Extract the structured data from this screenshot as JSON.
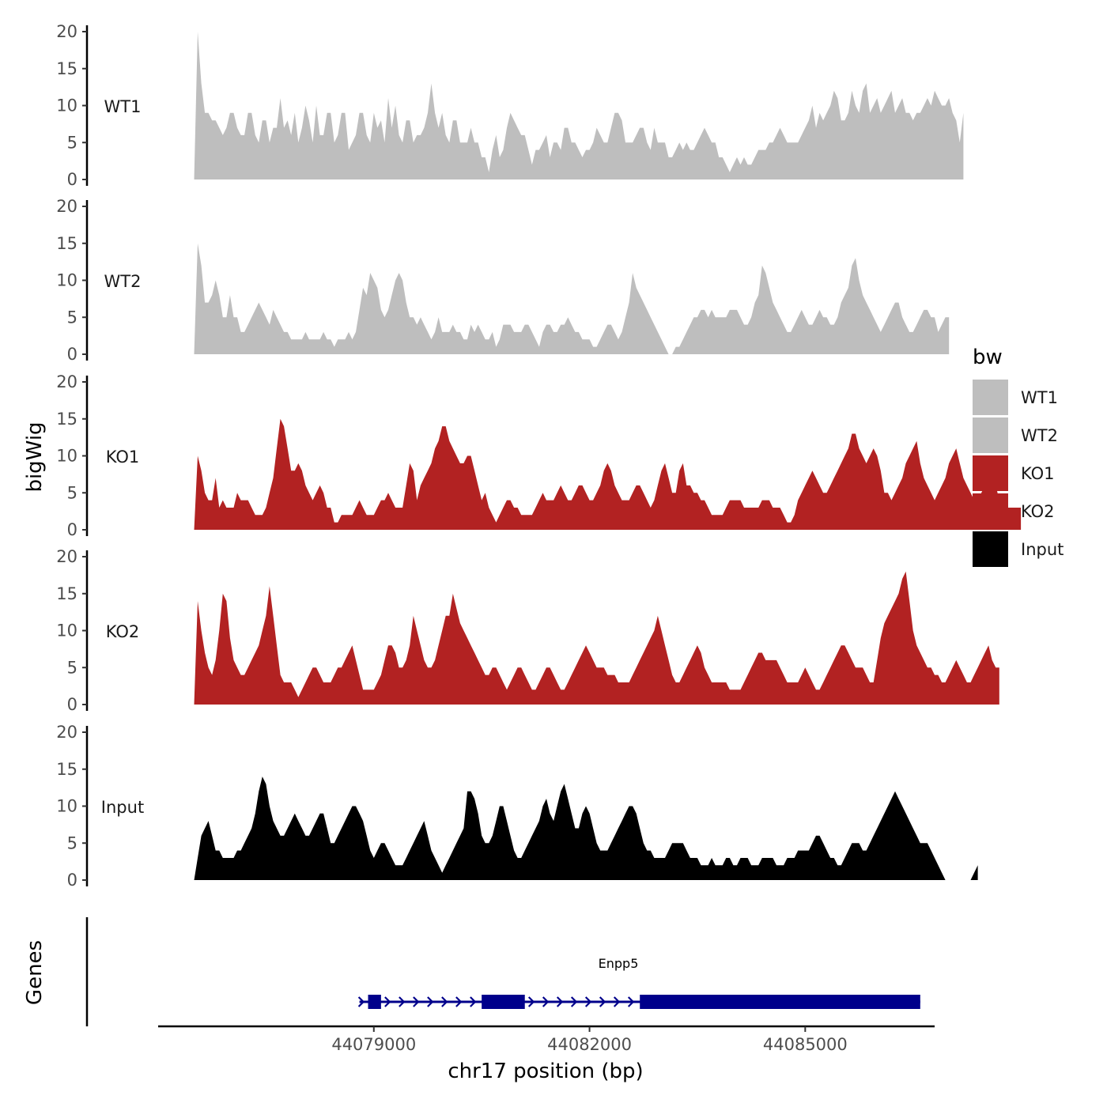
{
  "chart_data": {
    "type": "area",
    "ylabel": "bigWig",
    "xlabel": "chr17 position (bp)",
    "chromosome": "chr17",
    "ylim": [
      0,
      20
    ],
    "yticks": [
      0,
      5,
      10,
      15,
      20
    ],
    "xticks": [
      44079000,
      44082000,
      44085000
    ],
    "xtick_labels": [
      "44079000",
      "44082000",
      "44085000"
    ],
    "xlim": [
      44076000,
      44086800
    ],
    "x_start": 44076500,
    "x_step": 50,
    "legend": {
      "title": "bw",
      "position": "right"
    },
    "colors": {
      "WT1": "#bebebe",
      "WT2": "#bebebe",
      "KO1": "#b22222",
      "KO2": "#b22222",
      "Input": "#000000",
      "gene": "#00008b"
    },
    "series": [
      {
        "name": "WT1",
        "color": "#bebebe",
        "values": [
          0,
          20,
          13,
          9,
          9,
          8,
          8,
          7,
          6,
          7,
          9,
          9,
          7,
          6,
          6,
          9,
          9,
          6,
          5,
          8,
          8,
          5,
          7,
          7,
          11,
          7,
          8,
          6,
          9,
          5,
          7,
          10,
          8,
          5,
          10,
          6,
          6,
          9,
          9,
          5,
          6,
          9,
          9,
          4,
          5,
          6,
          9,
          9,
          6,
          5,
          9,
          7,
          8,
          5,
          11,
          7,
          10,
          6,
          5,
          8,
          8,
          5,
          6,
          6,
          7,
          9,
          13,
          9,
          7,
          9,
          6,
          5,
          8,
          8,
          5,
          5,
          5,
          7,
          5,
          5,
          3,
          3,
          1,
          4,
          6,
          3,
          4,
          7,
          9,
          8,
          7,
          6,
          6,
          4,
          2,
          4,
          4,
          5,
          6,
          3,
          5,
          5,
          4,
          7,
          7,
          5,
          5,
          4,
          3,
          4,
          4,
          5,
          7,
          6,
          5,
          5,
          7,
          9,
          9,
          8,
          5,
          5,
          5,
          6,
          7,
          7,
          5,
          4,
          7,
          5,
          5,
          5,
          3,
          3,
          4,
          5,
          4,
          5,
          4,
          4,
          5,
          6,
          7,
          6,
          5,
          5,
          3,
          3,
          2,
          1,
          2,
          3,
          2,
          3,
          2,
          2,
          3,
          4,
          4,
          4,
          5,
          5,
          6,
          7,
          6,
          5,
          5,
          5,
          5,
          6,
          7,
          8,
          10,
          7,
          9,
          8,
          9,
          10,
          12,
          11,
          8,
          8,
          9,
          12,
          10,
          9,
          12,
          13,
          9,
          10,
          11,
          9,
          10,
          11,
          12,
          9,
          10,
          11,
          9,
          9,
          8,
          9,
          9,
          10,
          11,
          10,
          12,
          11,
          10,
          10,
          11,
          9,
          8,
          5,
          9
        ]
      },
      {
        "name": "WT2",
        "color": "#bebebe",
        "values": [
          0,
          15,
          12,
          7,
          7,
          8,
          10,
          8,
          5,
          5,
          8,
          5,
          5,
          3,
          3,
          4,
          5,
          6,
          7,
          6,
          5,
          4,
          6,
          5,
          4,
          3,
          3,
          2,
          2,
          2,
          2,
          3,
          2,
          2,
          2,
          2,
          3,
          2,
          2,
          1,
          2,
          2,
          2,
          3,
          2,
          3,
          6,
          9,
          8,
          11,
          10,
          9,
          6,
          5,
          6,
          8,
          10,
          11,
          10,
          7,
          5,
          5,
          4,
          5,
          4,
          3,
          2,
          3,
          5,
          3,
          3,
          3,
          4,
          3,
          3,
          2,
          2,
          4,
          3,
          4,
          3,
          2,
          2,
          3,
          1,
          2,
          4,
          4,
          4,
          3,
          3,
          3,
          4,
          4,
          3,
          2,
          1,
          3,
          4,
          4,
          3,
          3,
          4,
          4,
          5,
          4,
          3,
          3,
          2,
          2,
          2,
          1,
          1,
          2,
          3,
          4,
          4,
          3,
          2,
          3,
          5,
          7,
          11,
          9,
          8,
          7,
          6,
          5,
          4,
          3,
          2,
          1,
          0,
          0,
          1,
          1,
          2,
          3,
          4,
          5,
          5,
          6,
          6,
          5,
          6,
          5,
          5,
          5,
          5,
          6,
          6,
          6,
          5,
          4,
          4,
          5,
          7,
          8,
          12,
          11,
          9,
          7,
          6,
          5,
          4,
          3,
          3,
          4,
          5,
          6,
          5,
          4,
          4,
          5,
          6,
          5,
          5,
          4,
          4,
          5,
          7,
          8,
          9,
          12,
          13,
          10,
          8,
          7,
          6,
          5,
          4,
          3,
          4,
          5,
          6,
          7,
          7,
          5,
          4,
          3,
          3,
          4,
          5,
          6,
          6,
          5,
          5,
          3,
          4,
          5,
          5
        ]
      },
      {
        "name": "KO1",
        "color": "#b22222",
        "values": [
          0,
          10,
          8,
          5,
          4,
          4,
          7,
          3,
          4,
          3,
          3,
          3,
          5,
          4,
          4,
          4,
          3,
          2,
          2,
          2,
          3,
          5,
          7,
          11,
          15,
          14,
          11,
          8,
          8,
          9,
          8,
          6,
          5,
          4,
          5,
          6,
          5,
          3,
          3,
          1,
          1,
          2,
          2,
          2,
          2,
          3,
          4,
          3,
          2,
          2,
          2,
          3,
          4,
          4,
          5,
          4,
          3,
          3,
          3,
          6,
          9,
          8,
          4,
          6,
          7,
          8,
          9,
          11,
          12,
          14,
          14,
          12,
          11,
          10,
          9,
          9,
          10,
          10,
          8,
          6,
          4,
          5,
          3,
          2,
          1,
          2,
          3,
          4,
          4,
          3,
          3,
          2,
          2,
          2,
          2,
          3,
          4,
          5,
          4,
          4,
          4,
          5,
          6,
          5,
          4,
          4,
          5,
          6,
          6,
          5,
          4,
          4,
          5,
          6,
          8,
          9,
          8,
          6,
          5,
          4,
          4,
          4,
          5,
          6,
          6,
          5,
          4,
          3,
          4,
          6,
          8,
          9,
          7,
          5,
          5,
          8,
          9,
          6,
          6,
          5,
          5,
          4,
          4,
          3,
          2,
          2,
          2,
          2,
          3,
          4,
          4,
          4,
          4,
          3,
          3,
          3,
          3,
          3,
          4,
          4,
          4,
          3,
          3,
          3,
          2,
          1,
          1,
          2,
          4,
          5,
          6,
          7,
          8,
          7,
          6,
          5,
          5,
          6,
          7,
          8,
          9,
          10,
          11,
          13,
          13,
          11,
          10,
          9,
          10,
          11,
          10,
          8,
          5,
          5,
          4,
          5,
          6,
          7,
          9,
          10,
          11,
          12,
          9,
          7,
          6,
          5,
          4,
          5,
          6,
          7,
          9,
          10,
          11,
          9,
          7,
          6,
          5,
          4,
          4,
          5,
          6,
          9,
          8,
          6,
          4,
          3,
          3,
          3,
          3,
          3,
          3
        ]
      },
      {
        "name": "KO2",
        "color": "#b22222",
        "values": [
          0,
          14,
          10,
          7,
          5,
          4,
          6,
          10,
          15,
          14,
          9,
          6,
          5,
          4,
          4,
          5,
          6,
          7,
          8,
          10,
          12,
          16,
          12,
          8,
          4,
          3,
          3,
          3,
          2,
          1,
          2,
          3,
          4,
          5,
          5,
          4,
          3,
          3,
          3,
          4,
          5,
          5,
          6,
          7,
          8,
          6,
          4,
          2,
          2,
          2,
          2,
          3,
          4,
          6,
          8,
          8,
          7,
          5,
          5,
          6,
          8,
          12,
          10,
          8,
          6,
          5,
          5,
          6,
          8,
          10,
          12,
          12,
          15,
          13,
          11,
          10,
          9,
          8,
          7,
          6,
          5,
          4,
          4,
          5,
          5,
          4,
          3,
          2,
          3,
          4,
          5,
          5,
          4,
          3,
          2,
          2,
          3,
          4,
          5,
          5,
          4,
          3,
          2,
          2,
          3,
          4,
          5,
          6,
          7,
          8,
          7,
          6,
          5,
          5,
          5,
          4,
          4,
          4,
          3,
          3,
          3,
          3,
          4,
          5,
          6,
          7,
          8,
          9,
          10,
          12,
          10,
          8,
          6,
          4,
          3,
          3,
          4,
          5,
          6,
          7,
          8,
          7,
          5,
          4,
          3,
          3,
          3,
          3,
          3,
          2,
          2,
          2,
          2,
          3,
          4,
          5,
          6,
          7,
          7,
          6,
          6,
          6,
          6,
          5,
          4,
          3,
          3,
          3,
          3,
          4,
          5,
          4,
          3,
          2,
          2,
          3,
          4,
          5,
          6,
          7,
          8,
          8,
          7,
          6,
          5,
          5,
          5,
          4,
          3,
          3,
          6,
          9,
          11,
          12,
          13,
          14,
          15,
          17,
          18,
          14,
          10,
          8,
          7,
          6,
          5,
          5,
          4,
          4,
          3,
          3,
          4,
          5,
          6,
          5,
          4,
          3,
          3,
          4,
          5,
          6,
          7,
          8,
          6,
          5,
          5
        ]
      },
      {
        "name": "Input",
        "color": "#000000",
        "values": [
          0,
          3,
          6,
          7,
          8,
          6,
          4,
          4,
          3,
          3,
          3,
          3,
          4,
          4,
          5,
          6,
          7,
          9,
          12,
          14,
          13,
          10,
          8,
          7,
          6,
          6,
          7,
          8,
          9,
          8,
          7,
          6,
          6,
          7,
          8,
          9,
          9,
          7,
          5,
          5,
          6,
          7,
          8,
          9,
          10,
          10,
          9,
          8,
          6,
          4,
          3,
          4,
          5,
          5,
          4,
          3,
          2,
          2,
          2,
          3,
          4,
          5,
          6,
          7,
          8,
          6,
          4,
          3,
          2,
          1,
          2,
          3,
          4,
          5,
          6,
          7,
          12,
          12,
          11,
          9,
          6,
          5,
          5,
          6,
          8,
          10,
          10,
          8,
          6,
          4,
          3,
          3,
          4,
          5,
          6,
          7,
          8,
          10,
          11,
          9,
          8,
          10,
          12,
          13,
          11,
          9,
          7,
          7,
          9,
          10,
          9,
          7,
          5,
          4,
          4,
          4,
          5,
          6,
          7,
          8,
          9,
          10,
          10,
          9,
          7,
          5,
          4,
          4,
          3,
          3,
          3,
          3,
          4,
          5,
          5,
          5,
          5,
          4,
          3,
          3,
          3,
          2,
          2,
          2,
          3,
          2,
          2,
          2,
          3,
          3,
          2,
          2,
          3,
          3,
          3,
          2,
          2,
          2,
          3,
          3,
          3,
          3,
          2,
          2,
          2,
          3,
          3,
          3,
          4,
          4,
          4,
          4,
          5,
          6,
          6,
          5,
          4,
          3,
          3,
          2,
          2,
          3,
          4,
          5,
          5,
          5,
          4,
          4,
          5,
          6,
          7,
          8,
          9,
          10,
          11,
          12,
          11,
          10,
          9,
          8,
          7,
          6,
          5,
          5,
          5,
          4,
          3,
          2,
          1,
          0,
          0,
          0,
          0,
          0,
          0,
          0,
          0,
          1,
          2
        ]
      }
    ],
    "genes_track": {
      "label": "Genes",
      "genes": [
        {
          "name": "Enpp5",
          "start": 44078800,
          "end": 44086600,
          "strand": "+",
          "exons": [
            {
              "start": 44078920,
              "end": 44079100
            },
            {
              "start": 44080500,
              "end": 44081100
            },
            {
              "start": 44082700,
              "end": 44086600
            }
          ]
        }
      ]
    }
  }
}
